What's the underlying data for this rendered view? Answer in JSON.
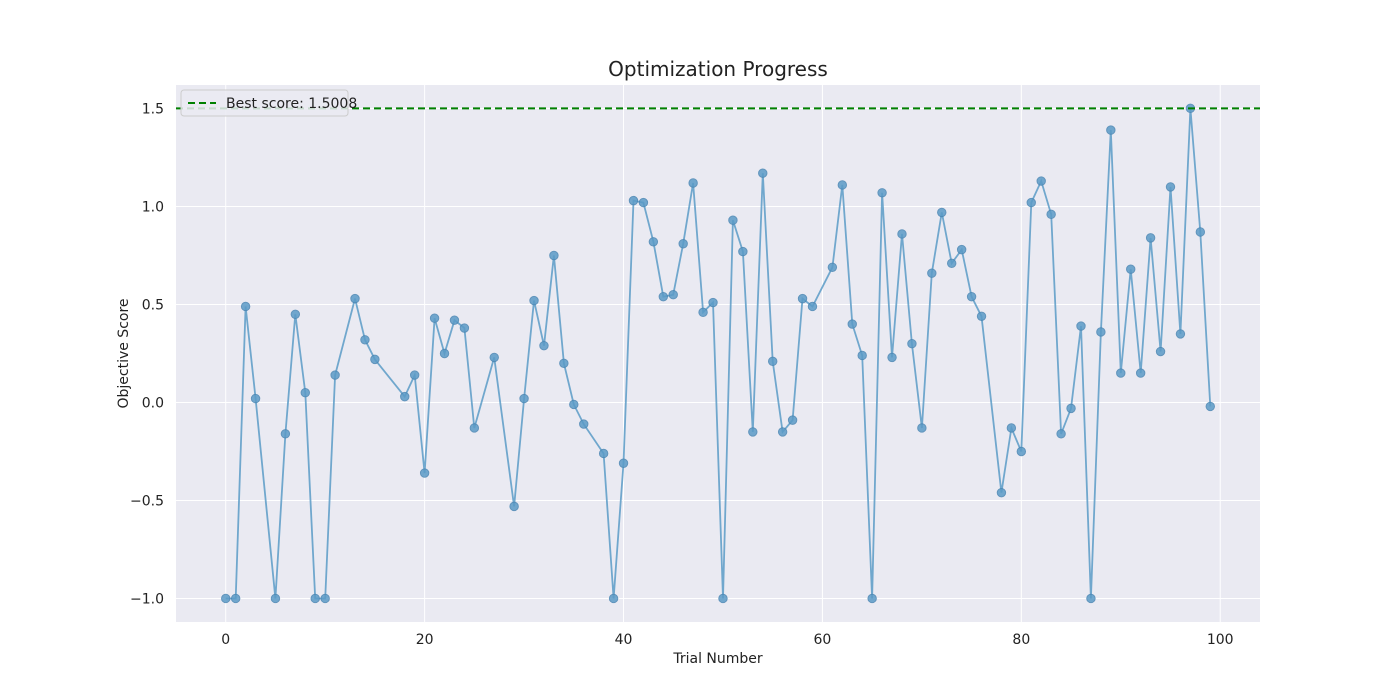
{
  "chart_data": {
    "type": "line",
    "title": "Optimization Progress",
    "xlabel": "Trial Number",
    "ylabel": "Objective Score",
    "xlim": [
      -5,
      104
    ],
    "ylim": [
      -1.12,
      1.62
    ],
    "xticks": [
      0,
      20,
      40,
      60,
      80,
      100
    ],
    "yticks": [
      -1.0,
      -0.5,
      0.0,
      0.5,
      1.0,
      1.5
    ],
    "ytick_labels": [
      "−1.0",
      "−0.5",
      "0.0",
      "0.5",
      "1.0",
      "1.5"
    ],
    "grid": true,
    "legend_placement": "top-left",
    "series": [
      {
        "color": "#5b9bc7",
        "points": [
          [
            0,
            -1.0
          ],
          [
            1,
            -1.0
          ],
          [
            2,
            0.49
          ],
          [
            3,
            0.02
          ],
          [
            5,
            -1.0
          ],
          [
            6,
            -0.16
          ],
          [
            7,
            0.45
          ],
          [
            8,
            0.05
          ],
          [
            9,
            -1.0
          ],
          [
            10,
            -1.0
          ],
          [
            11,
            0.14
          ],
          [
            13,
            0.53
          ],
          [
            14,
            0.32
          ],
          [
            15,
            0.22
          ],
          [
            18,
            0.03
          ],
          [
            19,
            0.14
          ],
          [
            20,
            -0.36
          ],
          [
            21,
            0.43
          ],
          [
            22,
            0.25
          ],
          [
            23,
            0.42
          ],
          [
            24,
            0.38
          ],
          [
            25,
            -0.13
          ],
          [
            27,
            0.23
          ],
          [
            29,
            -0.53
          ],
          [
            30,
            0.02
          ],
          [
            31,
            0.52
          ],
          [
            32,
            0.29
          ],
          [
            33,
            0.75
          ],
          [
            34,
            0.2
          ],
          [
            35,
            -0.01
          ],
          [
            36,
            -0.11
          ],
          [
            38,
            -0.26
          ],
          [
            39,
            -1.0
          ],
          [
            40,
            -0.31
          ],
          [
            41,
            1.03
          ],
          [
            42,
            1.02
          ],
          [
            43,
            0.82
          ],
          [
            44,
            0.54
          ],
          [
            45,
            0.55
          ],
          [
            46,
            0.81
          ],
          [
            47,
            1.12
          ],
          [
            48,
            0.46
          ],
          [
            49,
            0.51
          ],
          [
            50,
            -1.0
          ],
          [
            51,
            0.93
          ],
          [
            52,
            0.77
          ],
          [
            53,
            -0.15
          ],
          [
            54,
            1.17
          ],
          [
            55,
            0.21
          ],
          [
            56,
            -0.15
          ],
          [
            57,
            -0.09
          ],
          [
            58,
            0.53
          ],
          [
            59,
            0.49
          ],
          [
            61,
            0.69
          ],
          [
            62,
            1.11
          ],
          [
            63,
            0.4
          ],
          [
            64,
            0.24
          ],
          [
            65,
            -1.0
          ],
          [
            66,
            1.07
          ],
          [
            67,
            0.23
          ],
          [
            68,
            0.86
          ],
          [
            69,
            0.3
          ],
          [
            70,
            -0.13
          ],
          [
            71,
            0.66
          ],
          [
            72,
            0.97
          ],
          [
            73,
            0.71
          ],
          [
            74,
            0.78
          ],
          [
            75,
            0.54
          ],
          [
            76,
            0.44
          ],
          [
            78,
            -0.46
          ],
          [
            79,
            -0.13
          ],
          [
            80,
            -0.25
          ],
          [
            81,
            1.02
          ],
          [
            82,
            1.13
          ],
          [
            83,
            0.96
          ],
          [
            84,
            -0.16
          ],
          [
            85,
            -0.03
          ],
          [
            86,
            0.39
          ],
          [
            87,
            -1.0
          ],
          [
            88,
            0.36
          ],
          [
            89,
            1.39
          ],
          [
            90,
            0.15
          ],
          [
            91,
            0.68
          ],
          [
            92,
            0.15
          ],
          [
            93,
            0.84
          ],
          [
            94,
            0.26
          ],
          [
            95,
            1.1
          ],
          [
            96,
            0.35
          ],
          [
            97,
            1.5008
          ],
          [
            98,
            0.87
          ],
          [
            99,
            -0.02
          ]
        ]
      }
    ],
    "reference_line": {
      "y": 1.5008,
      "label": "Best score: 1.5008",
      "color": "#008000",
      "style": "dashed"
    }
  }
}
